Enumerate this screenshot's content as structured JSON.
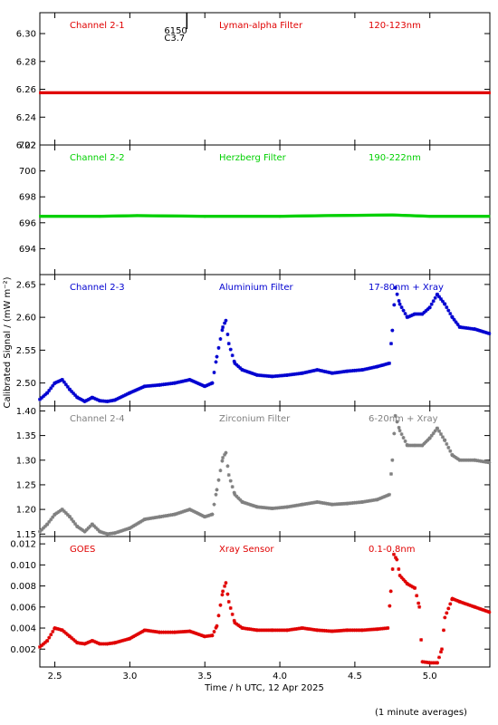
{
  "chart_data": [
    {
      "type": "scatter",
      "channel": "Channel 2-1",
      "filter": "Lyman-alpha Filter",
      "band": "120-123nm",
      "color": "#e00000",
      "ylim": [
        6.22,
        6.315
      ],
      "yticks": [
        "6.22",
        "6.24",
        "6.26",
        "6.28",
        "6.30"
      ],
      "ytick_values": [
        6.22,
        6.24,
        6.26,
        6.28,
        6.3
      ],
      "x": [
        2.4,
        5.4
      ],
      "y": [
        6.2575,
        6.2575
      ],
      "flare_marker": {
        "class_label": "C3.7",
        "id_label": "6150",
        "x": 3.38
      }
    },
    {
      "type": "scatter",
      "channel": "Channel 2-2",
      "filter": "Herzberg Filter",
      "band": "190-222nm",
      "color": "#00d000",
      "ylim": [
        692.0,
        702.0
      ],
      "yticks": [
        "694",
        "696",
        "698",
        "700",
        "702"
      ],
      "ytick_values": [
        694,
        696,
        698,
        700,
        702
      ],
      "x": [
        2.4,
        2.8,
        3.05,
        3.5,
        4.0,
        4.3,
        4.75,
        5.0,
        5.4
      ],
      "y": [
        696.5,
        696.5,
        696.55,
        696.5,
        696.5,
        696.55,
        696.6,
        696.5,
        696.5
      ]
    },
    {
      "type": "scatter",
      "channel": "Channel 2-3",
      "filter": "Aluminium Filter",
      "band": "17-80nm + Xray",
      "color": "#0000d0",
      "ylim": [
        2.465,
        2.665
      ],
      "yticks": [
        "2.50",
        "2.55",
        "2.60",
        "2.65"
      ],
      "ytick_values": [
        2.5,
        2.55,
        2.6,
        2.65
      ],
      "x": [
        2.4,
        2.45,
        2.5,
        2.55,
        2.6,
        2.65,
        2.7,
        2.75,
        2.8,
        2.85,
        2.9,
        3.0,
        3.1,
        3.2,
        3.3,
        3.4,
        3.5,
        3.55,
        3.58,
        3.62,
        3.64,
        3.66,
        3.7,
        3.75,
        3.85,
        3.95,
        4.05,
        4.15,
        4.25,
        4.35,
        4.45,
        4.55,
        4.65,
        4.73,
        4.75,
        4.77,
        4.8,
        4.85,
        4.9,
        4.95,
        5.0,
        5.05,
        5.1,
        5.15,
        5.2,
        5.3,
        5.4
      ],
      "y": [
        2.475,
        2.485,
        2.5,
        2.505,
        2.49,
        2.478,
        2.472,
        2.478,
        2.473,
        2.472,
        2.474,
        2.485,
        2.495,
        2.497,
        2.5,
        2.505,
        2.495,
        2.5,
        2.54,
        2.585,
        2.595,
        2.56,
        2.53,
        2.52,
        2.512,
        2.51,
        2.512,
        2.515,
        2.52,
        2.515,
        2.518,
        2.52,
        2.525,
        2.53,
        2.58,
        2.645,
        2.62,
        2.6,
        2.605,
        2.605,
        2.615,
        2.635,
        2.62,
        2.6,
        2.585,
        2.582,
        2.575
      ]
    },
    {
      "type": "scatter",
      "channel": "Channel 2-4",
      "filter": "Zirconium Filter",
      "band": "6-20nm + Xray",
      "color": "#808080",
      "ylim": [
        1.145,
        1.41
      ],
      "yticks": [
        "1.15",
        "1.20",
        "1.25",
        "1.30",
        "1.35",
        "1.40"
      ],
      "ytick_values": [
        1.15,
        1.2,
        1.25,
        1.3,
        1.35,
        1.4
      ],
      "x": [
        2.4,
        2.45,
        2.5,
        2.55,
        2.6,
        2.65,
        2.7,
        2.75,
        2.8,
        2.85,
        2.9,
        3.0,
        3.1,
        3.2,
        3.3,
        3.4,
        3.5,
        3.55,
        3.58,
        3.62,
        3.64,
        3.66,
        3.7,
        3.75,
        3.85,
        3.95,
        4.05,
        4.15,
        4.25,
        4.35,
        4.45,
        4.55,
        4.65,
        4.73,
        4.75,
        4.77,
        4.8,
        4.85,
        4.9,
        4.95,
        5.0,
        5.05,
        5.1,
        5.15,
        5.2,
        5.3,
        5.4
      ],
      "y": [
        1.155,
        1.17,
        1.19,
        1.2,
        1.185,
        1.165,
        1.155,
        1.17,
        1.155,
        1.15,
        1.152,
        1.162,
        1.18,
        1.185,
        1.19,
        1.2,
        1.185,
        1.19,
        1.24,
        1.305,
        1.315,
        1.27,
        1.23,
        1.215,
        1.205,
        1.202,
        1.205,
        1.21,
        1.215,
        1.21,
        1.212,
        1.215,
        1.22,
        1.23,
        1.3,
        1.39,
        1.36,
        1.33,
        1.33,
        1.33,
        1.345,
        1.365,
        1.34,
        1.31,
        1.3,
        1.3,
        1.295
      ]
    },
    {
      "type": "scatter",
      "channel": "GOES",
      "filter": "Xray Sensor",
      "band": "0.1-0.8nm",
      "color": "#e00000",
      "ylim": [
        0.0003,
        0.0127
      ],
      "yticks": [
        "0.002",
        "0.004",
        "0.006",
        "0.008",
        "0.010",
        "0.012"
      ],
      "ytick_values": [
        0.002,
        0.004,
        0.006,
        0.008,
        0.01,
        0.012
      ],
      "x": [
        2.4,
        2.45,
        2.5,
        2.55,
        2.6,
        2.65,
        2.7,
        2.75,
        2.8,
        2.85,
        2.9,
        3.0,
        3.1,
        3.2,
        3.3,
        3.4,
        3.5,
        3.55,
        3.58,
        3.62,
        3.64,
        3.66,
        3.7,
        3.75,
        3.85,
        3.95,
        4.05,
        4.15,
        4.25,
        4.35,
        4.45,
        4.55,
        4.65,
        4.72,
        4.74,
        4.76,
        4.78,
        4.8,
        4.85,
        4.9,
        4.93,
        4.95,
        5.0,
        5.05,
        5.08,
        5.1,
        5.15,
        5.2,
        5.3,
        5.4
      ],
      "y": [
        0.0022,
        0.0028,
        0.004,
        0.0038,
        0.0032,
        0.0026,
        0.0025,
        0.0028,
        0.0025,
        0.0025,
        0.0026,
        0.003,
        0.0038,
        0.0036,
        0.0036,
        0.0037,
        0.0032,
        0.0033,
        0.0042,
        0.0075,
        0.0083,
        0.0065,
        0.0045,
        0.004,
        0.0038,
        0.0038,
        0.0038,
        0.004,
        0.0038,
        0.0037,
        0.0038,
        0.0038,
        0.0039,
        0.004,
        0.0075,
        0.011,
        0.0105,
        0.009,
        0.0082,
        0.0078,
        0.006,
        0.0008,
        0.0007,
        0.0007,
        0.002,
        0.005,
        0.0068,
        0.0065,
        0.006,
        0.0055
      ]
    }
  ],
  "shared_x_axis": {
    "xlim": [
      2.4,
      5.4
    ],
    "xticks": [
      "2.5",
      "3.0",
      "3.5",
      "4.0",
      "4.5",
      "5.0"
    ],
    "xtick_values": [
      2.5,
      3.0,
      3.5,
      4.0,
      4.5,
      5.0
    ],
    "xlabel": "Time / h UTC, 12 Apr 2025"
  },
  "ylabel": "Calibrated Signal / (mW m⁻²)",
  "footer_note": "(1 minute averages)"
}
